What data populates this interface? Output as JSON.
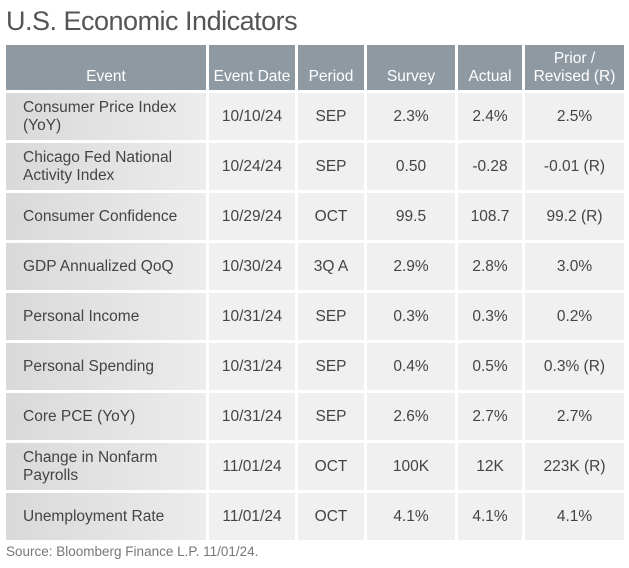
{
  "title": "U.S. Economic Indicators",
  "table": {
    "headers": [
      "Event",
      "Event Date",
      "Period",
      "Survey",
      "Actual",
      "Prior / Revised (R)"
    ],
    "rows": [
      [
        "Consumer Price Index (YoY)",
        "10/10/24",
        "SEP",
        "2.3%",
        "2.4%",
        "2.5%"
      ],
      [
        "Chicago Fed National Activity Index",
        "10/24/24",
        "SEP",
        "0.50",
        "-0.28",
        "-0.01 (R)"
      ],
      [
        "Consumer Confidence",
        "10/29/24",
        "OCT",
        "99.5",
        "108.7",
        "99.2 (R)"
      ],
      [
        "GDP Annualized QoQ",
        "10/30/24",
        "3Q A",
        "2.9%",
        "2.8%",
        "3.0%"
      ],
      [
        "Personal Income",
        "10/31/24",
        "SEP",
        "0.3%",
        "0.3%",
        "0.2%"
      ],
      [
        "Personal Spending",
        "10/31/24",
        "SEP",
        "0.4%",
        "0.5%",
        "0.3% (R)"
      ],
      [
        "Core PCE (YoY)",
        "10/31/24",
        "SEP",
        "2.6%",
        "2.7%",
        "2.7%"
      ],
      [
        "Change in Nonfarm Payrolls",
        "11/01/24",
        "OCT",
        "100K",
        "12K",
        "223K (R)"
      ],
      [
        "Unemployment Rate",
        "11/01/24",
        "OCT",
        "4.1%",
        "4.1%",
        "4.1%"
      ]
    ]
  },
  "source": "Source: Bloomberg Finance L.P. 11/01/24.",
  "colors": {
    "header": "#8e99a2",
    "cell": "#f0f0f0",
    "first_col": "#e0e0e0"
  }
}
